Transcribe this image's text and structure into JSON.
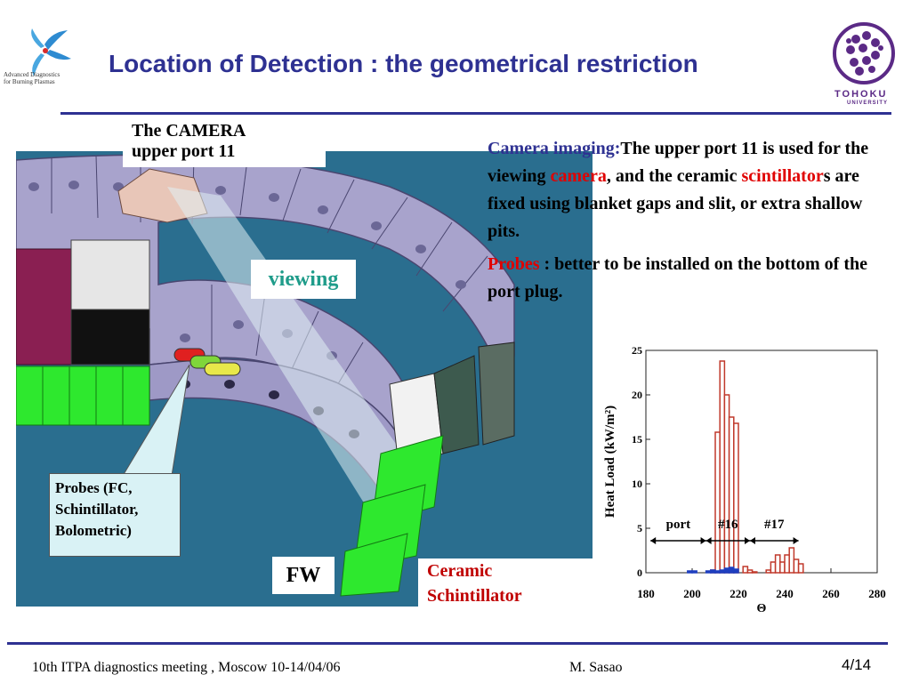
{
  "slide": {
    "title": "Location of Detection : the geometrical restriction",
    "page": "4/14",
    "footer_left": "10th  ITPA diagnostics meeting , Moscow 10-14/04/06",
    "footer_author": "M. Sasao"
  },
  "logos": {
    "left_text_line1": "Advanced Diagnostics",
    "left_text_line2": "for Burning Plasmas",
    "right_name": "TOHOKU",
    "right_sub": "UNIVERSITY"
  },
  "figure_labels": {
    "camera_line1": "The  CAMERA",
    "camera_line2": "upper port 11",
    "viewing": "viewing",
    "probes_line1": "Probes (FC,",
    "probes_line2": "Schintillator,",
    "probes_line3": "Bolometric)",
    "fw": "FW",
    "ceramic_line1": "Ceramic",
    "ceramic_line2": "Schintillator"
  },
  "description": {
    "p1_lead": "Camera imaging:",
    "p1_a": "The  upper port 11 is used for the viewing ",
    "p1_camera": "camera",
    "p1_b": ", and the ceramic ",
    "p1_scint": "scintillator",
    "p1_c": "s are fixed using blanket gaps and slit, or extra shallow pits.",
    "p2_lead": "Probes",
    "p2_rest": " : better to be installed on the bottom of the port plug."
  },
  "colors": {
    "title": "#2e3192",
    "rule": "#2e3192",
    "viewing": "#1f9c8a",
    "highlight_red": "#e00000",
    "ceramic_label": "#c00000",
    "cad_background": "#2a6e8f",
    "blanket_module": "#a8a3cc",
    "scintillator_green": "#2ee82e",
    "histogram_red": "#c0392b",
    "histogram_blue": "#1f3fbf"
  },
  "chart_data": {
    "type": "bar",
    "xlabel": "Θ",
    "ylabel": "Heat Load (kW/m²)",
    "xlim": [
      180,
      280
    ],
    "ylim": [
      0,
      25
    ],
    "x_ticks": [
      "180",
      "200",
      "220",
      "240",
      "260",
      "280"
    ],
    "y_ticks": [
      "0",
      "5",
      "10",
      "15",
      "20",
      "25"
    ],
    "series": [
      {
        "color": "#c0392b",
        "bin_width": 2,
        "x": [
          208,
          210,
          212,
          214,
          216,
          218,
          222,
          224,
          226,
          232,
          234,
          236,
          238,
          240,
          242,
          244,
          246
        ],
        "values": [
          0.3,
          15.8,
          23.8,
          20,
          17.5,
          16.8,
          0.7,
          0.3,
          0.1,
          0.3,
          1.2,
          2,
          1.2,
          2,
          2.8,
          1.5,
          1
        ]
      },
      {
        "color": "#1f3fbf",
        "bin_width": 2,
        "x": [
          198,
          200,
          206,
          208,
          210,
          212,
          214,
          216,
          218
        ],
        "values": [
          0.2,
          0.2,
          0.2,
          0.3,
          0.2,
          0.3,
          0.5,
          0.6,
          0.4
        ]
      }
    ],
    "annotations": [
      {
        "text": "port",
        "x_range": [
          182,
          206
        ]
      },
      {
        "text": "#16",
        "x_range": [
          206,
          225
        ]
      },
      {
        "text": "#17",
        "x_range": [
          225,
          246
        ]
      }
    ]
  }
}
